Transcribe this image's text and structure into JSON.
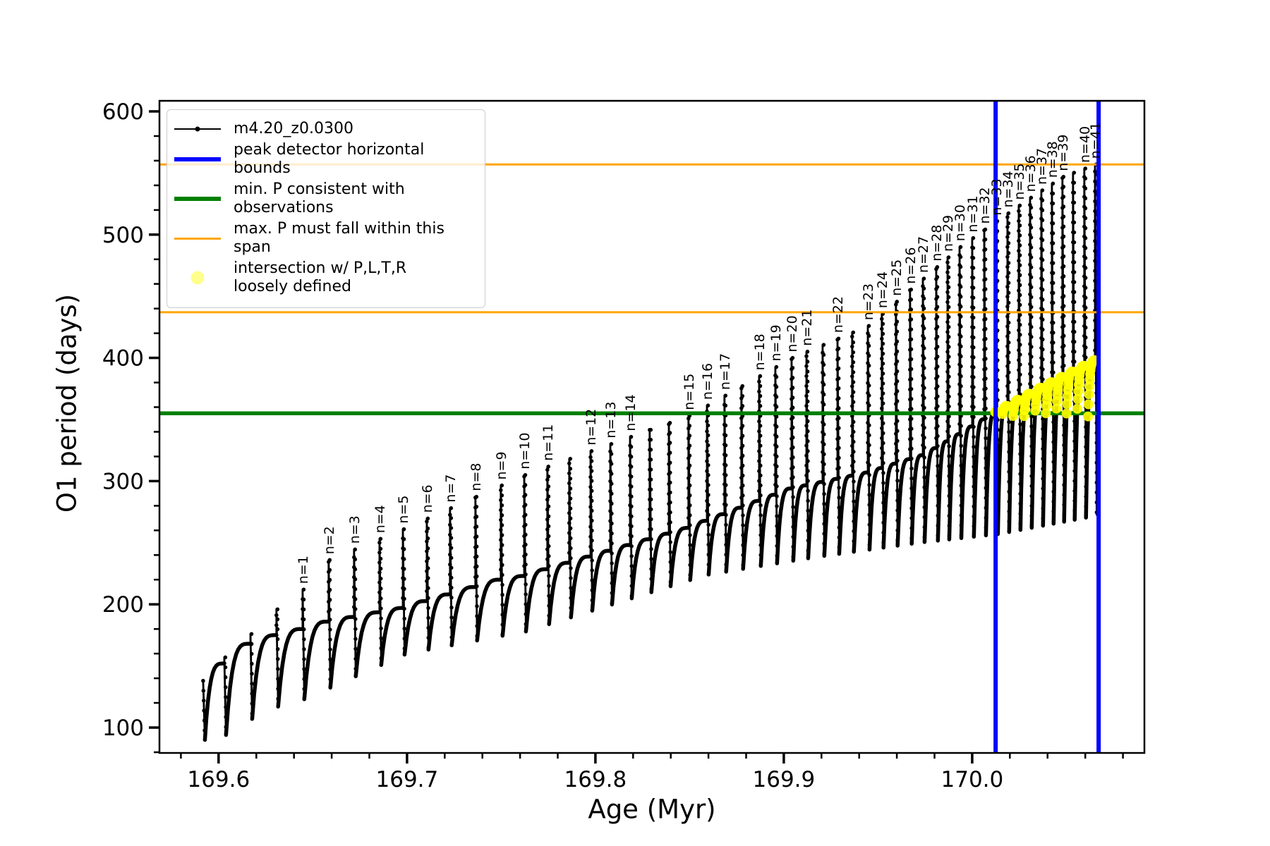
{
  "axes": {
    "xlabel": "Age (Myr)",
    "ylabel": "O1 period (days)"
  },
  "legend": {
    "entries": [
      {
        "label": "m4.20_z0.0300",
        "type": "line-marker",
        "color": "#000000",
        "lw": 2
      },
      {
        "label": "peak detector horizontal bounds",
        "type": "line",
        "color": "#0000ff",
        "lw": 6
      },
      {
        "label": "min. P consistent with observations",
        "type": "line",
        "color": "#008000",
        "lw": 6
      },
      {
        "label": "max. P must fall within this span",
        "type": "line",
        "color": "#ffa500",
        "lw": 3
      },
      {
        "label": "intersection w/ P,L,T,R\nloosely defined",
        "type": "marker",
        "color": "#ffff00"
      }
    ]
  },
  "chart_data": {
    "type": "line",
    "title": "",
    "xlabel": "Age (Myr)",
    "ylabel": "O1 period (days)",
    "xlim": [
      169.5686,
      170.0914
    ],
    "ylim": [
      79.4,
      608.6
    ],
    "xticks": {
      "values": [
        169.6,
        169.7,
        169.8,
        169.9,
        170.0
      ],
      "labels": [
        "169.6",
        "169.7",
        "169.8",
        "169.9",
        "170.0"
      ],
      "minor_step": 0.02,
      "minor_start": 169.58,
      "minor_end": 170.08
    },
    "yticks": {
      "values": [
        100,
        200,
        300,
        400,
        500,
        600
      ],
      "labels": [
        "100",
        "200",
        "300",
        "400",
        "500",
        "600"
      ],
      "minor_step": 20,
      "minor_start": 80,
      "minor_end": 600
    },
    "grid": false,
    "legend_position": "upper left",
    "series_label": "m4.20_z0.0300",
    "colors": {
      "series": "#000000",
      "peak_bounds": "#0000ff",
      "min_p": "#008000",
      "max_span": "#ffa500",
      "intersection": "#ffff00"
    },
    "hlines": [
      {
        "name": "max-span-upper",
        "value": 557,
        "color": "#ffa500",
        "lw": 3
      },
      {
        "name": "max-span-lower",
        "value": 437,
        "color": "#ffa500",
        "lw": 3
      },
      {
        "name": "min-period",
        "value": 355,
        "color": "#008000",
        "lw": 5.5
      }
    ],
    "vlines": [
      {
        "name": "peak-bound-left",
        "value": 170.0124,
        "color": "#0000ff",
        "lw": 6
      },
      {
        "name": "peak-bound-right",
        "value": 170.0671,
        "color": "#0000ff",
        "lw": 6
      }
    ],
    "yellow_region": {
      "x_range": [
        170.0124,
        170.0671
      ],
      "y_min": 352,
      "marker_radius": 7,
      "description": "intersection w/ P,L,T,R loosely defined"
    },
    "teeth": [
      {
        "age": 169.5918,
        "label": null
      },
      {
        "age": 169.603,
        "label": null
      },
      {
        "age": 169.6169,
        "label": null
      },
      {
        "age": 169.6307,
        "label": null
      },
      {
        "age": 169.6446,
        "label": "n=1"
      },
      {
        "age": 169.6584,
        "label": "n=2"
      },
      {
        "age": 169.6719,
        "label": "n=3"
      },
      {
        "age": 169.6854,
        "label": "n=4"
      },
      {
        "age": 169.6978,
        "label": "n=5"
      },
      {
        "age": 169.7105,
        "label": "n=6"
      },
      {
        "age": 169.7228,
        "label": "n=7"
      },
      {
        "age": 169.7363,
        "label": "n=8"
      },
      {
        "age": 169.7498,
        "label": "n=9"
      },
      {
        "age": 169.7622,
        "label": "n=10"
      },
      {
        "age": 169.7745,
        "label": "n=11"
      },
      {
        "age": 169.7861,
        "label": null
      },
      {
        "age": 169.7974,
        "label": "n=12"
      },
      {
        "age": 169.8079,
        "label": "n=13"
      },
      {
        "age": 169.8184,
        "label": "n=14"
      },
      {
        "age": 169.8288,
        "label": null
      },
      {
        "age": 169.839,
        "label": null
      },
      {
        "age": 169.8494,
        "label": "n=15"
      },
      {
        "age": 169.8592,
        "label": "n=16"
      },
      {
        "age": 169.8685,
        "label": "n=17"
      },
      {
        "age": 169.8775,
        "label": null
      },
      {
        "age": 169.8869,
        "label": "n=18"
      },
      {
        "age": 169.8955,
        "label": "n=19"
      },
      {
        "age": 169.9041,
        "label": "n=20"
      },
      {
        "age": 169.912,
        "label": "n=21"
      },
      {
        "age": 169.9206,
        "label": null
      },
      {
        "age": 169.9285,
        "label": "n=22"
      },
      {
        "age": 169.9363,
        "label": null
      },
      {
        "age": 169.9446,
        "label": "n=23"
      },
      {
        "age": 169.952,
        "label": "n=24"
      },
      {
        "age": 169.9595,
        "label": "n=25"
      },
      {
        "age": 169.967,
        "label": "n=26"
      },
      {
        "age": 169.9738,
        "label": "n=27"
      },
      {
        "age": 169.9809,
        "label": "n=28"
      },
      {
        "age": 169.9869,
        "label": "n=29"
      },
      {
        "age": 169.9933,
        "label": "n=30"
      },
      {
        "age": 170.0,
        "label": "n=31"
      },
      {
        "age": 170.0064,
        "label": "n=32"
      },
      {
        "age": 170.0127,
        "label": "n=33"
      },
      {
        "age": 170.0187,
        "label": "n=34"
      },
      {
        "age": 170.0247,
        "label": "n=35"
      },
      {
        "age": 170.0307,
        "label": "n=36"
      },
      {
        "age": 170.0367,
        "label": "n=37"
      },
      {
        "age": 170.0423,
        "label": "n=38"
      },
      {
        "age": 170.0479,
        "label": "n=39"
      },
      {
        "age": 170.0535,
        "label": null
      },
      {
        "age": 170.0595,
        "label": "n=40"
      },
      {
        "age": 170.0652,
        "label": "n=41"
      }
    ],
    "envelopes": {
      "peaks": [
        [
          169.5918,
          138
        ],
        [
          169.603,
          157
        ],
        [
          169.6169,
          176
        ],
        [
          169.6307,
          196
        ],
        [
          169.6446,
          212
        ],
        [
          169.6584,
          236
        ],
        [
          169.6978,
          261
        ],
        [
          169.7622,
          305
        ],
        [
          169.8494,
          353
        ],
        [
          169.9041,
          400
        ],
        [
          169.9446,
          426
        ],
        [
          169.9933,
          490
        ],
        [
          170.0127,
          511
        ],
        [
          170.0307,
          530
        ],
        [
          170.0479,
          547
        ],
        [
          170.0652,
          557
        ]
      ],
      "humps": [
        [
          169.5918,
          150
        ],
        [
          169.603,
          152
        ],
        [
          169.6169,
          168
        ],
        [
          169.6307,
          175
        ],
        [
          169.6446,
          180
        ],
        [
          169.6584,
          186
        ],
        [
          169.6978,
          197
        ],
        [
          169.7498,
          220
        ],
        [
          169.7622,
          223
        ],
        [
          169.8494,
          262
        ],
        [
          169.9041,
          294
        ],
        [
          169.9446,
          307
        ],
        [
          169.9757,
          322
        ],
        [
          170.0127,
          356
        ],
        [
          170.0382,
          377
        ],
        [
          170.0652,
          398
        ]
      ],
      "valleys": [
        [
          169.5918,
          90
        ],
        [
          169.603,
          94
        ],
        [
          169.6169,
          107
        ],
        [
          169.6307,
          117
        ],
        [
          169.6446,
          123
        ],
        [
          169.699,
          160
        ],
        [
          169.7622,
          178
        ],
        [
          169.8584,
          224
        ],
        [
          169.9146,
          238
        ],
        [
          169.9708,
          250
        ],
        [
          170.0127,
          257
        ],
        [
          170.0652,
          272
        ]
      ]
    }
  }
}
